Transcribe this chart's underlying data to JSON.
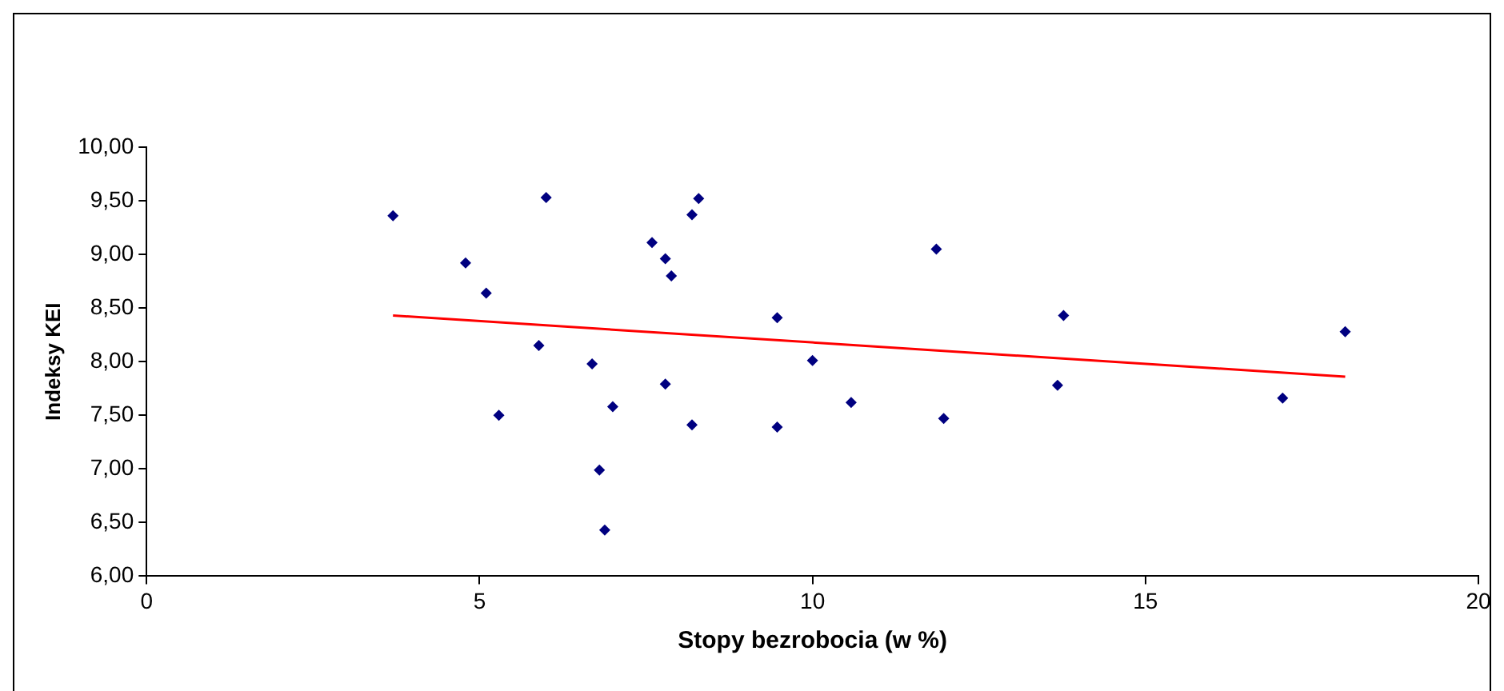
{
  "chart_data": {
    "type": "scatter",
    "xlabel": "Stopy bezrobocia (w %)",
    "ylabel": "Indeksy KEI",
    "marker": "diamond",
    "xlim": [
      0,
      20
    ],
    "xticks": [
      0,
      5,
      10,
      15,
      20
    ],
    "ylim": [
      6,
      10
    ],
    "yticks": [
      {
        "value": 6,
        "label": "6,00"
      },
      {
        "value": 6.5,
        "label": "6,50"
      },
      {
        "value": 7,
        "label": "7,00"
      },
      {
        "value": 7.5,
        "label": "7,50"
      },
      {
        "value": 8,
        "label": "8,00"
      },
      {
        "value": 8.5,
        "label": "8,50"
      },
      {
        "value": 9,
        "label": "9,00"
      },
      {
        "value": 9.5,
        "label": "9,50"
      },
      {
        "value": 10,
        "label": "10,00"
      }
    ],
    "series": [
      {
        "type": "scatter",
        "color": "#000080",
        "x": [
          3.7,
          4.79,
          5.1,
          5.29,
          5.89,
          6.0,
          6.69,
          6.8,
          6.88,
          7.0,
          7.59,
          7.79,
          7.88,
          7.79,
          8.19,
          8.29,
          8.19,
          9.47,
          9.47,
          10.0,
          10.58,
          11.86,
          11.97,
          13.68,
          13.77,
          17.06,
          18.0
        ],
        "values": [
          9.36,
          8.92,
          8.64,
          7.5,
          8.15,
          9.53,
          7.98,
          6.99,
          6.43,
          7.58,
          9.11,
          8.96,
          8.8,
          7.79,
          9.37,
          9.52,
          7.41,
          8.41,
          7.39,
          8.01,
          7.62,
          9.05,
          7.47,
          7.78,
          8.43,
          7.66,
          8.28
        ]
      },
      {
        "type": "line",
        "color": "#ff0000",
        "marker": "none",
        "x": [
          3.7,
          18.0
        ],
        "values": [
          8.43,
          7.86
        ]
      }
    ]
  }
}
